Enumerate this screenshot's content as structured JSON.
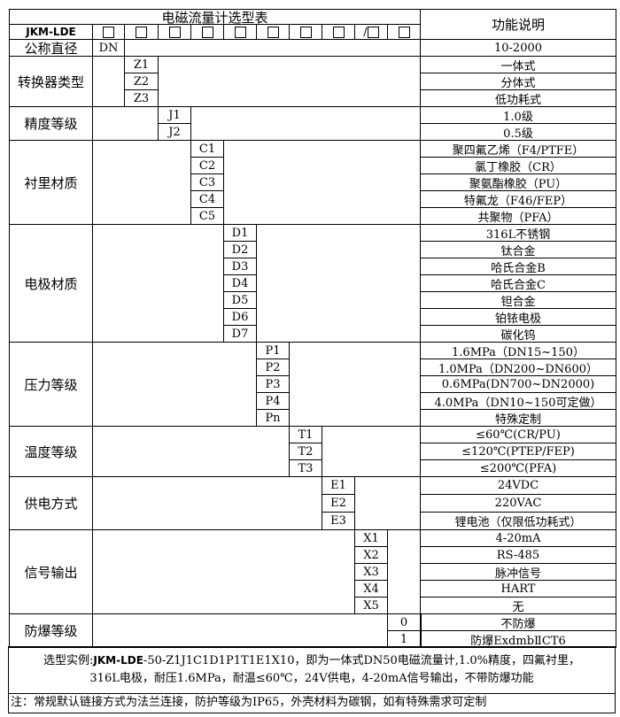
{
  "header": {
    "title": "电磁流量计选型表",
    "function_header": "功能说明",
    "model": "JKM-LDE",
    "slots": [
      "□",
      "□",
      "□",
      "□",
      "□",
      "□",
      "□",
      "□",
      "/□",
      "□"
    ]
  },
  "groups": [
    {
      "label": "公称直径",
      "codes": [
        "DN"
      ],
      "descs": [
        "10-2000"
      ]
    },
    {
      "label": "转换器类型",
      "codes": [
        "Z1",
        "Z2",
        "Z3"
      ],
      "descs": [
        "一体式",
        "分体式",
        "低功耗式"
      ]
    },
    {
      "label": "精度等级",
      "codes": [
        "J1",
        "J2"
      ],
      "descs": [
        "1.0级",
        "0.5级"
      ]
    },
    {
      "label": "衬里材质",
      "codes": [
        "C1",
        "C2",
        "C3",
        "C4",
        "C5"
      ],
      "descs": [
        "聚四氟乙烯（F4/PTFE）",
        "氯丁橡胶（CR）",
        "聚氨酯橡胶（PU）",
        "特氟龙（F46/FEP）",
        "共聚物（PFA）"
      ]
    },
    {
      "label": "电极材质",
      "codes": [
        "D1",
        "D2",
        "D3",
        "D4",
        "D5",
        "D6",
        "D7"
      ],
      "descs": [
        "316L不锈钢",
        "钛合金",
        "哈氏合金B",
        "哈氏合金C",
        "钽合金",
        "铂铱电极",
        "碳化钨"
      ]
    },
    {
      "label": "压力等级",
      "codes": [
        "P1",
        "P2",
        "P3",
        "P4",
        "Pn"
      ],
      "descs": [
        "1.6MPa（DN15~150）",
        "1.0MPa（DN200~DN600）",
        "0.6MPa(DN700~DN2000)",
        "4.0MPa（DN10~150可定做）",
        "特殊定制"
      ]
    },
    {
      "label": "温度等级",
      "codes": [
        "T1",
        "T2",
        "T3"
      ],
      "descs": [
        "≤60℃(CR/PU)",
        "≤120℃(PTEP/FEP)",
        "≤200℃(PFA)"
      ]
    },
    {
      "label": "供电方式",
      "codes": [
        "E1",
        "E2",
        "E3"
      ],
      "descs": [
        "24VDC",
        "220VAC",
        "锂电池（仅限低功耗式）"
      ]
    },
    {
      "label": "信号输出",
      "codes": [
        "X1",
        "X2",
        "X3",
        "X4",
        "X5"
      ],
      "descs": [
        "4-20mA",
        "RS-485",
        "脉冲信号",
        "HART",
        "无"
      ]
    },
    {
      "label": "防爆等级",
      "codes": [
        "0",
        "1"
      ],
      "descs": [
        "不防爆",
        "防爆ExdmbⅡCT6"
      ]
    }
  ],
  "example": {
    "prefix": "选型实例:",
    "model": "JKM-LDE",
    "line1_rest": "-50-Z1J1C1D1P1T1E1X10，即为一体式DN50电磁流量计,1.0%精度，四氟衬里，",
    "line2": "316L电极，耐压1.6MPa，耐温≤60℃，24V供电，4-20mA信号输出，不带防爆功能"
  },
  "note": "注：常规默认链接方式为法兰连接，防护等级为IP65，外壳材料为碳钢，如有特殊需求可定制"
}
